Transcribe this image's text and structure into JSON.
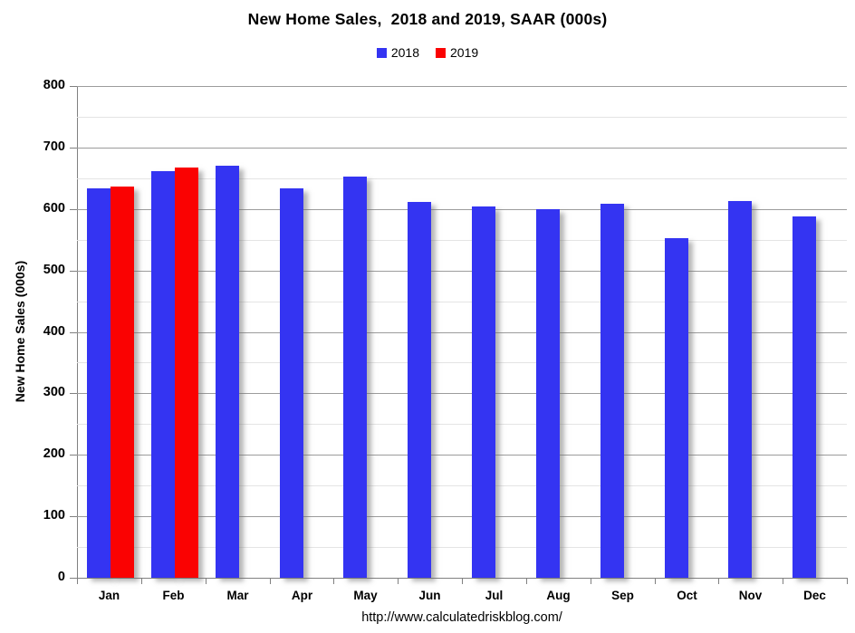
{
  "page": {
    "background": "#ffffff"
  },
  "footer": {
    "url": "http://www.calculatedriskblog.com/"
  },
  "chart_data": {
    "type": "bar",
    "title": "New Home Sales,  2018 and 2019, SAAR (000s)",
    "ylabel": "New Home Sales (000s)",
    "xlabel": "",
    "categories": [
      "Jan",
      "Feb",
      "Mar",
      "Apr",
      "May",
      "Jun",
      "Jul",
      "Aug",
      "Sep",
      "Oct",
      "Nov",
      "Dec"
    ],
    "series": [
      {
        "name": "2018",
        "color": "#3434f2",
        "values": [
          633,
          662,
          670,
          633,
          652,
          612,
          604,
          600,
          609,
          553,
          613,
          588
        ]
      },
      {
        "name": "2019",
        "color": "#fa0202",
        "values": [
          636,
          667,
          null,
          null,
          null,
          null,
          null,
          null,
          null,
          null,
          null,
          null
        ]
      }
    ],
    "ylim": [
      0,
      800
    ],
    "yticks": [
      0,
      100,
      200,
      300,
      400,
      500,
      600,
      700,
      800
    ],
    "grid": {
      "minor_step": 50,
      "major_step": 100,
      "minor_color": "#e4e4e4",
      "major_color": "#9c9c9c",
      "axis_color": "#808080"
    },
    "legend_position": "top-center"
  }
}
